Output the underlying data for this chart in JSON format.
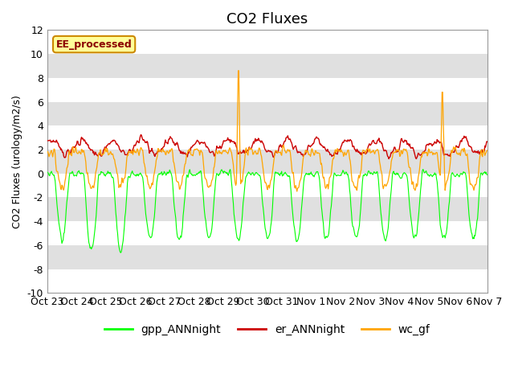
{
  "title": "CO2 Fluxes",
  "ylabel": "CO2 Fluxes (urology/m2/s)",
  "xlabel": "",
  "ylim": [
    -10,
    12
  ],
  "yticks": [
    -10,
    -8,
    -6,
    -4,
    -2,
    0,
    2,
    4,
    6,
    8,
    10,
    12
  ],
  "xtick_labels": [
    "Oct 23",
    "Oct 24",
    "Oct 25",
    "Oct 26",
    "Oct 27",
    "Oct 28",
    "Oct 29",
    "Oct 30",
    "Oct 31",
    "Nov 1",
    "Nov 2",
    "Nov 3",
    "Nov 4",
    "Nov 5",
    "Nov 6",
    "Nov 7"
  ],
  "n_days": 15,
  "n_points_per_day": 48,
  "gpp_color": "#00FF00",
  "er_color": "#CC0000",
  "wc_color": "#FFA500",
  "annotation_text": "EE_processed",
  "annotation_bg": "#FFFF99",
  "annotation_border": "#CC8800",
  "legend_labels": [
    "gpp_ANNnight",
    "er_ANNnight",
    "wc_gf"
  ],
  "title_fontsize": 13,
  "label_fontsize": 9,
  "tick_fontsize": 9
}
